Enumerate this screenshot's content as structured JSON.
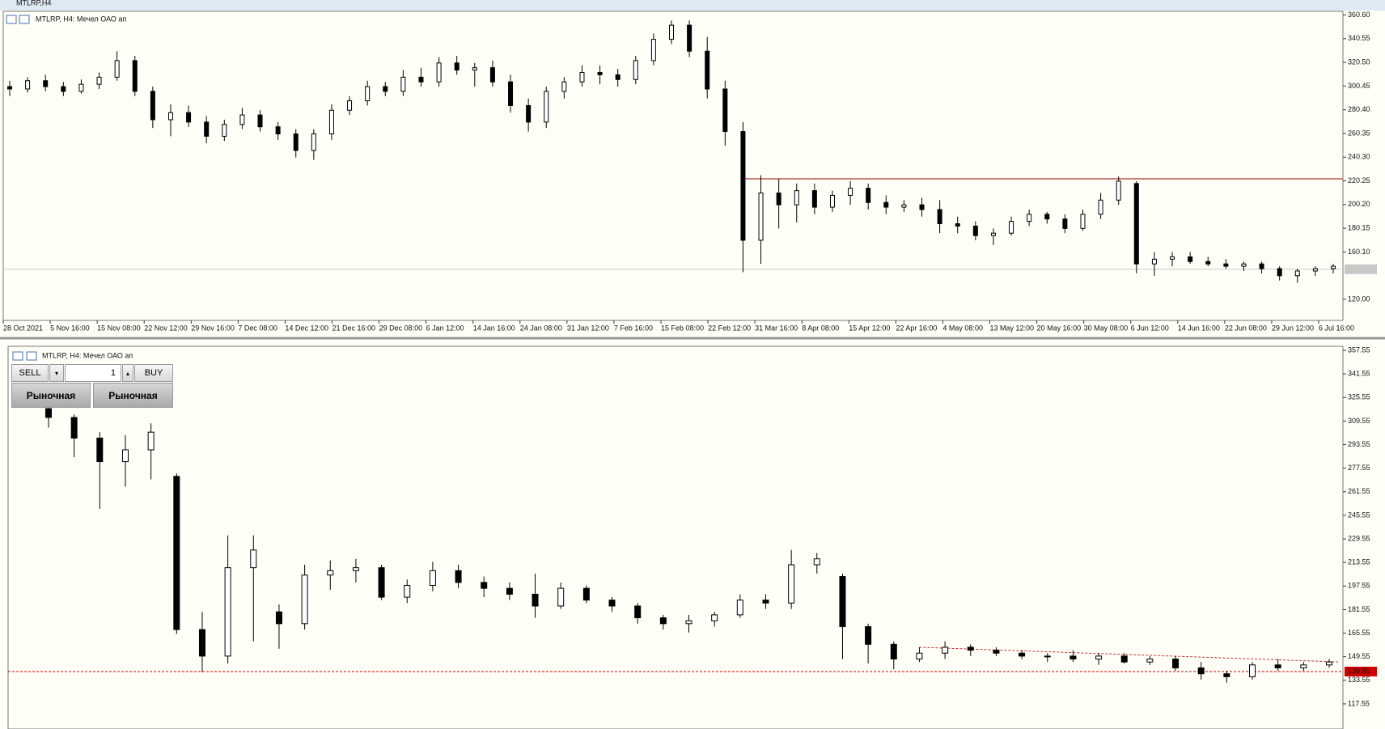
{
  "window": {
    "title": "MTLRP,H4"
  },
  "trade_panel": {
    "sell": "SELL",
    "volume": 1,
    "buy": "BUY",
    "market_sell": "Рыночная",
    "market_buy": "Рыночная"
  },
  "chart_data": [
    {
      "type": "candlestick",
      "title": "MTLRP, H4:  Мечел ОАО ап",
      "up_color": "#ffffff",
      "down_color": "#000000",
      "ylim": [
        102.2,
        363.7
      ],
      "yticks": [
        {
          "value": 360.6,
          "label": "360.60"
        },
        {
          "value": 340.55,
          "label": "340.55"
        },
        {
          "value": 320.5,
          "label": "320.50"
        },
        {
          "value": 300.45,
          "label": "300.45"
        },
        {
          "value": 280.4,
          "label": "280.40"
        },
        {
          "value": 260.35,
          "label": "260.35"
        },
        {
          "value": 240.3,
          "label": "240.30"
        },
        {
          "value": 220.25,
          "label": "220.25"
        },
        {
          "value": 200.2,
          "label": "200.20"
        },
        {
          "value": 180.15,
          "label": "180.15"
        },
        {
          "value": 160.1,
          "label": "160.10"
        },
        {
          "value": 120,
          "label": "120.00"
        }
      ],
      "time_labels": [
        "28 Oct 2021",
        "5 Nov 16:00",
        "15 Nov 08:00",
        "22 Nov 12:00",
        "29 Nov 16:00",
        "7 Dec 08:00",
        "14 Dec 12:00",
        "21 Dec 16:00",
        "29 Dec 08:00",
        "6 Jan 12:00",
        "14 Jan 16:00",
        "24 Jan 08:00",
        "31 Jan 12:00",
        "7 Feb 16:00",
        "15 Feb 08:00",
        "22 Feb 12:00",
        "31 Mar 16:00",
        "8 Apr 08:00",
        "15 Apr 12:00",
        "22 Apr 16:00",
        "4 May 08:00",
        "13 May 12:00",
        "20 May 16:00",
        "30 May 08:00",
        "6 Jun 12:00",
        "14 Jun 16:00",
        "22 Jun 08:00",
        "29 Jun 12:00",
        "6 Jul 16:00"
      ],
      "resistance": 222,
      "resistance_color": "#b03030",
      "bid_line": 145.5,
      "ohlc": [
        [
          300,
          305,
          292,
          298
        ],
        [
          298,
          308,
          295,
          305
        ],
        [
          305,
          310,
          296,
          300
        ],
        [
          300,
          304,
          292,
          296
        ],
        [
          296,
          306,
          294,
          302
        ],
        [
          302,
          312,
          298,
          308
        ],
        [
          308,
          330,
          305,
          322
        ],
        [
          322,
          326,
          292,
          296
        ],
        [
          296,
          300,
          265,
          272
        ],
        [
          272,
          285,
          258,
          278
        ],
        [
          278,
          284,
          266,
          270
        ],
        [
          270,
          275,
          252,
          258
        ],
        [
          258,
          272,
          254,
          268
        ],
        [
          268,
          282,
          264,
          276
        ],
        [
          276,
          280,
          262,
          266
        ],
        [
          266,
          270,
          255,
          260
        ],
        [
          260,
          264,
          240,
          246
        ],
        [
          246,
          264,
          238,
          260
        ],
        [
          260,
          285,
          255,
          280
        ],
        [
          280,
          292,
          276,
          288
        ],
        [
          288,
          305,
          284,
          300
        ],
        [
          300,
          304,
          292,
          296
        ],
        [
          296,
          314,
          292,
          308
        ],
        [
          308,
          316,
          300,
          304
        ],
        [
          304,
          325,
          300,
          320
        ],
        [
          320,
          326,
          310,
          314
        ],
        [
          314,
          320,
          300,
          316
        ],
        [
          316,
          322,
          300,
          304
        ],
        [
          304,
          310,
          278,
          284
        ],
        [
          284,
          290,
          262,
          270
        ],
        [
          270,
          300,
          265,
          296
        ],
        [
          296,
          308,
          290,
          304
        ],
        [
          304,
          318,
          300,
          312
        ],
        [
          312,
          318,
          302,
          310
        ],
        [
          310,
          315,
          300,
          306
        ],
        [
          306,
          326,
          302,
          322
        ],
        [
          322,
          345,
          318,
          340
        ],
        [
          340,
          356,
          336,
          352
        ],
        [
          352,
          356,
          325,
          330
        ],
        [
          330,
          342,
          290,
          298
        ],
        [
          298,
          305,
          250,
          262
        ],
        [
          262,
          270,
          143,
          170
        ],
        [
          170,
          225,
          150,
          210
        ],
        [
          210,
          222,
          180,
          200
        ],
        [
          200,
          218,
          185,
          212
        ],
        [
          212,
          218,
          192,
          198
        ],
        [
          198,
          212,
          194,
          208
        ],
        [
          208,
          220,
          200,
          214
        ],
        [
          214,
          218,
          196,
          202
        ],
        [
          202,
          208,
          192,
          198
        ],
        [
          198,
          204,
          194,
          200
        ],
        [
          200,
          206,
          190,
          196
        ],
        [
          196,
          204,
          176,
          184
        ],
        [
          184,
          190,
          176,
          182
        ],
        [
          182,
          186,
          170,
          174
        ],
        [
          174,
          180,
          166,
          176
        ],
        [
          176,
          190,
          174,
          186
        ],
        [
          186,
          196,
          182,
          192
        ],
        [
          192,
          194,
          184,
          188
        ],
        [
          188,
          192,
          176,
          180
        ],
        [
          180,
          196,
          178,
          192
        ],
        [
          192,
          210,
          188,
          204
        ],
        [
          204,
          224,
          200,
          220
        ],
        [
          218,
          220,
          142,
          150
        ],
        [
          150,
          160,
          140,
          154
        ],
        [
          154,
          160,
          148,
          156
        ],
        [
          156,
          160,
          150,
          152
        ],
        [
          152,
          156,
          148,
          150
        ],
        [
          150,
          154,
          146,
          148
        ],
        [
          148,
          152,
          144,
          150
        ],
        [
          150,
          152,
          142,
          146
        ],
        [
          146,
          148,
          136,
          140
        ],
        [
          140,
          146,
          134,
          144
        ],
        [
          144,
          148,
          140,
          146
        ],
        [
          146,
          150,
          142,
          148
        ]
      ]
    },
    {
      "type": "candlestick",
      "title": "MTLRP, H4:  Мечел ОАО ап",
      "up_color": "#ffffff",
      "down_color": "#000000",
      "ylim": [
        100.5,
        360.3
      ],
      "yticks": [
        {
          "value": 357.55,
          "label": "357.55"
        },
        {
          "value": 341.55,
          "label": "341.55"
        },
        {
          "value": 325.55,
          "label": "325.55"
        },
        {
          "value": 309.55,
          "label": "309.55"
        },
        {
          "value": 293.55,
          "label": "293.55"
        },
        {
          "value": 277.55,
          "label": "277.55"
        },
        {
          "value": 261.55,
          "label": "261.55"
        },
        {
          "value": 245.55,
          "label": "245.55"
        },
        {
          "value": 229.55,
          "label": "229.55"
        },
        {
          "value": 213.55,
          "label": "213.55"
        },
        {
          "value": 197.55,
          "label": "197.55"
        },
        {
          "value": 181.55,
          "label": "181.55"
        },
        {
          "value": 165.55,
          "label": "165.55"
        },
        {
          "value": 149.55,
          "label": "149.55"
        },
        {
          "value": 133.55,
          "label": "133.55"
        },
        {
          "value": 117.55,
          "label": "117.55"
        }
      ],
      "bid": {
        "value": 139.5,
        "label": "139.50"
      },
      "bid_color": "#d00000",
      "trendline": [
        156,
        146
      ],
      "trendline_color": "#c03030",
      "ohlc": [
        [
          318,
          320,
          305,
          312
        ],
        [
          312,
          314,
          285,
          298
        ],
        [
          298,
          302,
          250,
          282
        ],
        [
          282,
          300,
          265,
          290
        ],
        [
          290,
          308,
          270,
          302
        ],
        [
          272,
          274,
          165,
          168
        ],
        [
          168,
          180,
          139,
          150
        ],
        [
          150,
          232,
          145,
          210
        ],
        [
          210,
          232,
          160,
          222
        ],
        [
          180,
          185,
          155,
          172
        ],
        [
          172,
          212,
          168,
          205
        ],
        [
          205,
          215,
          195,
          208
        ],
        [
          208,
          216,
          200,
          210
        ],
        [
          210,
          212,
          188,
          190
        ],
        [
          190,
          202,
          186,
          198
        ],
        [
          198,
          214,
          194,
          208
        ],
        [
          208,
          212,
          196,
          200
        ],
        [
          200,
          204,
          190,
          196
        ],
        [
          196,
          200,
          188,
          192
        ],
        [
          192,
          206,
          176,
          184
        ],
        [
          184,
          200,
          182,
          196
        ],
        [
          196,
          198,
          186,
          188
        ],
        [
          188,
          190,
          180,
          184
        ],
        [
          184,
          186,
          172,
          176
        ],
        [
          176,
          178,
          168,
          172
        ],
        [
          172,
          178,
          166,
          174
        ],
        [
          174,
          180,
          170,
          178
        ],
        [
          178,
          192,
          176,
          188
        ],
        [
          188,
          192,
          182,
          186
        ],
        [
          186,
          222,
          182,
          212
        ],
        [
          212,
          220,
          206,
          216
        ],
        [
          204,
          206,
          148,
          170
        ],
        [
          170,
          172,
          145,
          158
        ],
        [
          158,
          160,
          141,
          148
        ],
        [
          148,
          156,
          146,
          152
        ],
        [
          152,
          160,
          148,
          156
        ],
        [
          156,
          158,
          150,
          154
        ],
        [
          154,
          156,
          150,
          152
        ],
        [
          152,
          154,
          148,
          150
        ],
        [
          150,
          152,
          146,
          150
        ],
        [
          150,
          154,
          146,
          148
        ],
        [
          148,
          152,
          144,
          150
        ],
        [
          150,
          152,
          145,
          146
        ],
        [
          146,
          150,
          144,
          148
        ],
        [
          148,
          150,
          140,
          142
        ],
        [
          142,
          146,
          134,
          138
        ],
        [
          138,
          140,
          132,
          136
        ],
        [
          136,
          146,
          134,
          144
        ],
        [
          144,
          148,
          140,
          142
        ],
        [
          142,
          146,
          140,
          144
        ],
        [
          144,
          148,
          142,
          146
        ]
      ]
    }
  ]
}
